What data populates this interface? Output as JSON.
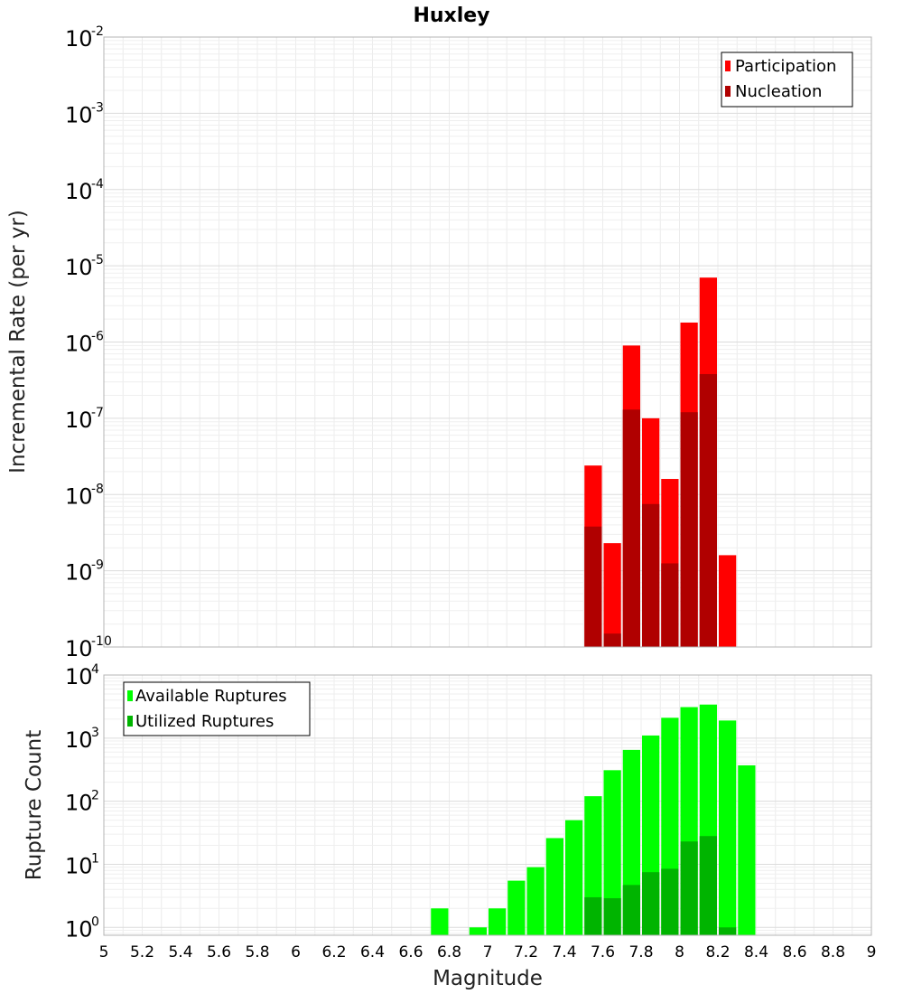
{
  "chart_data": [
    {
      "type": "bar",
      "title": "Huxley",
      "xlabel": "",
      "ylabel": "Incremental Rate (per yr)",
      "xlim": [
        5,
        9
      ],
      "ylim": [
        1e-10,
        0.01
      ],
      "yscale": "log",
      "grid": true,
      "legend_position": "top-right",
      "bar_width": 0.1,
      "series": [
        {
          "name": "Participation",
          "color": "#ff0000",
          "x": [
            7.55,
            7.65,
            7.75,
            7.85,
            7.95,
            8.05,
            8.15,
            8.25
          ],
          "values": [
            2.4e-08,
            2.3e-09,
            9e-07,
            1e-07,
            1.6e-08,
            1.8e-06,
            7e-06,
            1.6e-09
          ]
        },
        {
          "name": "Nucleation",
          "color": "#b00000",
          "x": [
            7.55,
            7.65,
            7.75,
            7.85,
            7.95,
            8.05,
            8.15
          ],
          "values": [
            3.8e-09,
            1.5e-10,
            1.3e-07,
            7.5e-09,
            1.25e-09,
            1.2e-07,
            3.8e-07
          ]
        }
      ]
    },
    {
      "type": "bar",
      "title": "",
      "xlabel": "Magnitude",
      "ylabel": "Rupture Count",
      "xlim": [
        5,
        9
      ],
      "ylim": [
        0.75,
        10000
      ],
      "yscale": "log",
      "grid": true,
      "legend_position": "top-left",
      "bar_width": 0.1,
      "x_ticks": [
        "5",
        "5.2",
        "5.4",
        "5.6",
        "5.8",
        "6",
        "6.2",
        "6.4",
        "6.6",
        "6.8",
        "7",
        "7.2",
        "7.4",
        "7.6",
        "7.8",
        "8",
        "8.2",
        "8.4",
        "8.6",
        "8.8",
        "9"
      ],
      "series": [
        {
          "name": "Available Ruptures",
          "color": "#00ff00",
          "x": [
            6.75,
            6.95,
            7.05,
            7.15,
            7.25,
            7.35,
            7.45,
            7.55,
            7.65,
            7.75,
            7.85,
            7.95,
            8.05,
            8.15,
            8.25,
            8.35
          ],
          "values": [
            2,
            1,
            2,
            5.5,
            9,
            26,
            50,
            120,
            310,
            650,
            1100,
            2100,
            3100,
            3400,
            1900,
            370
          ]
        },
        {
          "name": "Utilized Ruptures",
          "color": "#00b400",
          "x": [
            7.55,
            7.65,
            7.75,
            7.85,
            7.95,
            8.05,
            8.15,
            8.25
          ],
          "values": [
            3,
            2.9,
            4.7,
            7.5,
            8.5,
            23,
            28,
            1
          ]
        }
      ]
    }
  ]
}
